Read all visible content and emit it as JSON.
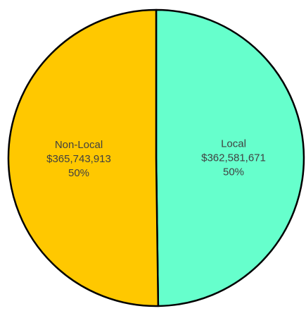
{
  "chart_data": {
    "type": "pie",
    "title": "",
    "start_angle_deg": 0,
    "direction": "clockwise",
    "legend": "none",
    "slices": [
      {
        "name": "Local",
        "value": 362581671,
        "value_label": "$362,581,671",
        "percent_label": "50%",
        "color": "#66FFCC"
      },
      {
        "name": "Non-Local",
        "value": 365743913,
        "value_label": "$365,743,913",
        "percent_label": "50%",
        "color": "#FFC800"
      }
    ]
  }
}
